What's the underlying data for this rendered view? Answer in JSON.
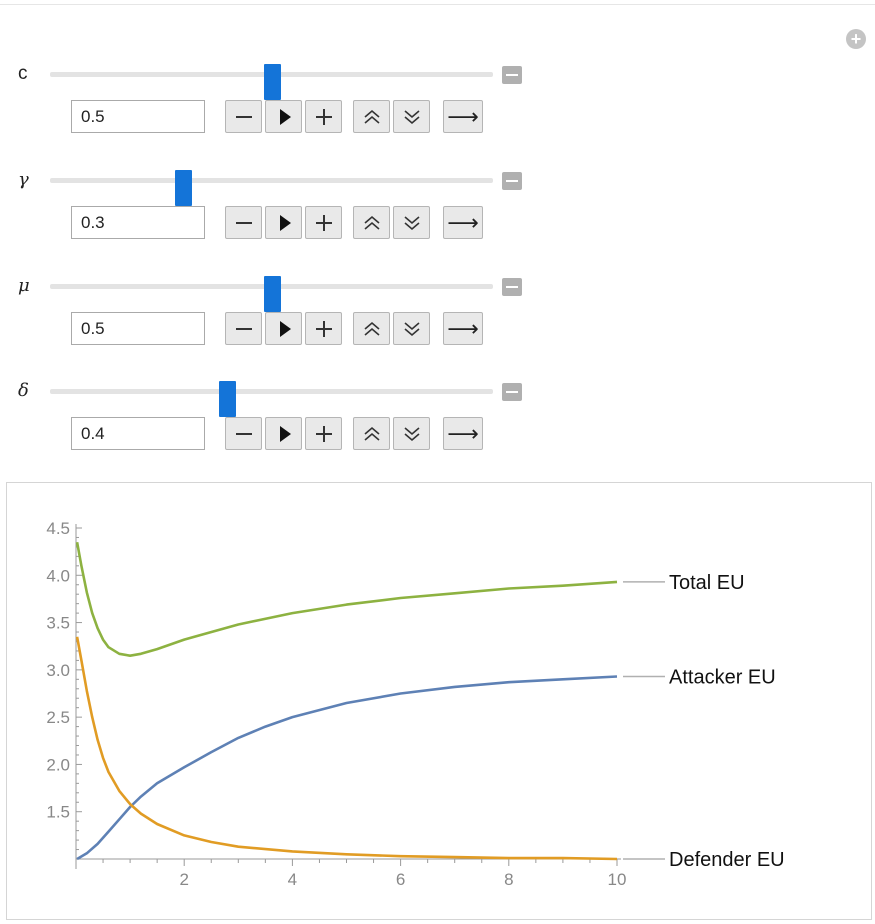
{
  "controls": [
    {
      "id": "c",
      "label": "c",
      "value": "0.5",
      "fraction": 0.5,
      "greek": false
    },
    {
      "id": "gamma",
      "label": "γ",
      "value": "0.3",
      "fraction": 0.3,
      "greek": true
    },
    {
      "id": "mu",
      "label": "μ",
      "value": "0.5",
      "fraction": 0.5,
      "greek": true
    },
    {
      "id": "delta",
      "label": "δ",
      "value": "0.4",
      "fraction": 0.4,
      "greek": true
    }
  ],
  "colors": {
    "total": "#8db241",
    "attacker": "#5e81b5",
    "defender": "#e19c24",
    "slider_thumb": "#1474d8"
  },
  "chart_data": {
    "type": "line",
    "xlim": [
      0,
      10
    ],
    "ylim": [
      1.0,
      4.5
    ],
    "x_ticks": [
      2,
      4,
      6,
      8,
      10
    ],
    "y_ticks": [
      1.5,
      2.0,
      2.5,
      3.0,
      3.5,
      4.0,
      4.5
    ],
    "y_tick_labels": [
      "1.5",
      "2.0",
      "2.5",
      "3.0",
      "3.5",
      "4.0",
      "4.5"
    ],
    "x_tick_labels": [
      "2",
      "4",
      "6",
      "8",
      "10"
    ],
    "series": [
      {
        "key": "total",
        "name": "Total EU",
        "x": [
          0.02,
          0.1,
          0.2,
          0.3,
          0.4,
          0.5,
          0.6,
          0.8,
          1.0,
          1.2,
          1.5,
          2,
          3,
          4,
          5,
          6,
          7,
          8,
          9,
          10
        ],
        "y": [
          4.35,
          4.1,
          3.82,
          3.6,
          3.44,
          3.32,
          3.24,
          3.17,
          3.15,
          3.17,
          3.22,
          3.32,
          3.48,
          3.6,
          3.69,
          3.76,
          3.81,
          3.86,
          3.89,
          3.93
        ]
      },
      {
        "key": "attacker",
        "name": "Attacker EU",
        "x": [
          0.02,
          0.2,
          0.4,
          0.6,
          0.8,
          1.0,
          1.2,
          1.5,
          2,
          2.5,
          3,
          3.5,
          4,
          5,
          6,
          7,
          8,
          9,
          10
        ],
        "y": [
          1.0,
          1.06,
          1.16,
          1.29,
          1.42,
          1.55,
          1.66,
          1.8,
          1.97,
          2.13,
          2.28,
          2.4,
          2.5,
          2.65,
          2.75,
          2.82,
          2.87,
          2.9,
          2.93
        ]
      },
      {
        "key": "defender",
        "name": "Defender EU",
        "x": [
          0.02,
          0.1,
          0.2,
          0.3,
          0.4,
          0.5,
          0.6,
          0.8,
          1.0,
          1.2,
          1.5,
          2,
          2.5,
          3,
          4,
          5,
          6,
          7,
          8,
          9,
          10
        ],
        "y": [
          3.35,
          3.1,
          2.78,
          2.5,
          2.26,
          2.07,
          1.92,
          1.72,
          1.58,
          1.48,
          1.37,
          1.25,
          1.18,
          1.13,
          1.08,
          1.05,
          1.03,
          1.02,
          1.01,
          1.01,
          1.0
        ]
      }
    ]
  }
}
